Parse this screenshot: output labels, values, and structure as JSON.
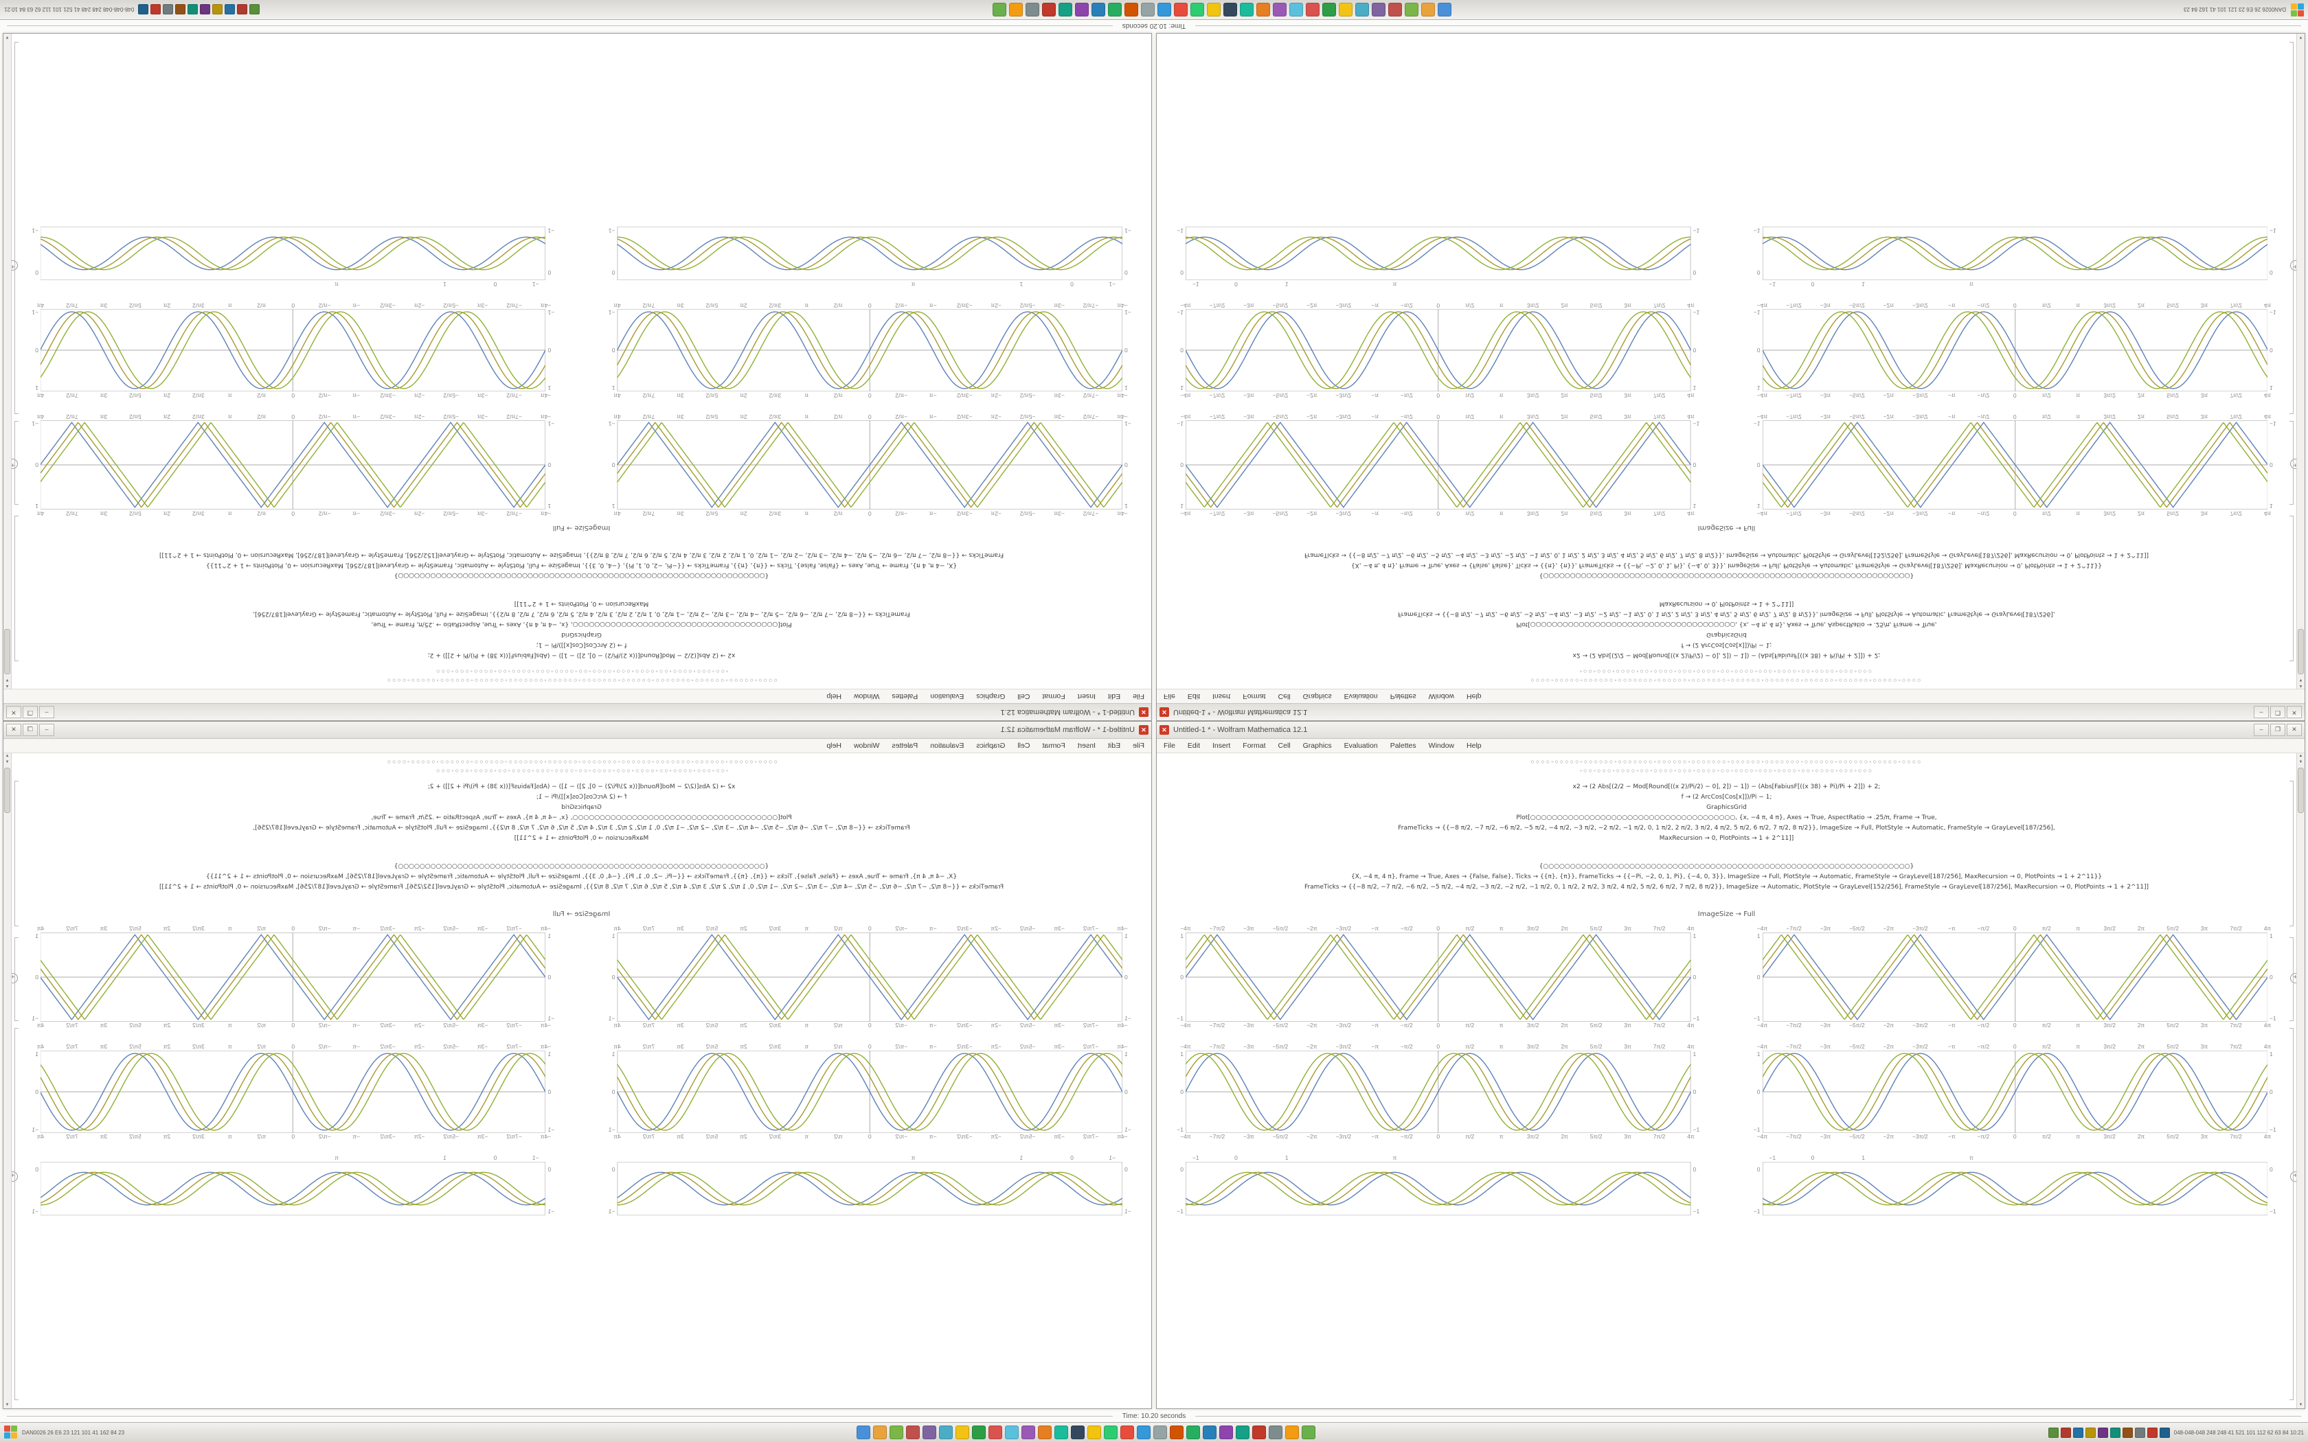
{
  "status_bar": {
    "time_label": "Time: 10.20 seconds"
  },
  "taskbar": {
    "left_status": "DAN0026  26  E6  23  121  101  41  162  84  23",
    "right_status": "048-048-048  248 248 41 521 101 112 62 63 84  10:21",
    "app_icon_colors": [
      "#4a90d9",
      "#e8a33d",
      "#7ab648",
      "#c0504d",
      "#8064a2",
      "#4bacc6",
      "#f2c314",
      "#2d9e46",
      "#d9534f",
      "#5bc0de",
      "#9b59b6",
      "#e67e22",
      "#1abc9c",
      "#34495e",
      "#f1c40f",
      "#2ecc71",
      "#e74c3c",
      "#3498db",
      "#95a5a6",
      "#d35400",
      "#27ae60",
      "#2980b9",
      "#8e44ad",
      "#16a085",
      "#c0392b",
      "#7f8c8d",
      "#f39c12",
      "#6ab04c"
    ],
    "tray_icon_colors": [
      "#5a8f3c",
      "#b03a2e",
      "#2471a3",
      "#b7950b",
      "#6c3483",
      "#148f77",
      "#935116",
      "#707b7c",
      "#c0392b",
      "#1f618d"
    ]
  },
  "window": {
    "title": "Untitled-1 * - Wolfram Mathematica 12.1",
    "controls": {
      "minimize": "–",
      "maximize": "❐",
      "close": "✕"
    },
    "menu_items": [
      "File",
      "Edit",
      "Insert",
      "Format",
      "Cell",
      "Graphics",
      "Evaluation",
      "Palettes",
      "Window",
      "Help"
    ],
    "toolbar_rows": [
      "○○○○◦○○○○○◦○○○○○○◦○○○○○○○◦○○○○○○◦○○○○○○○◦○○○○○○◦○○○○○○○◦○○○○○○◦○○○○○○◦○○○○○◦○○○○",
      "◦○○◦○○○◦○○○○◦○○◦○○○○◦○○○◦○○○○◦○○◦○○○○◦○○○◦○○○○◦○○◦○○○○◦○○○◦○○○"
    ],
    "code_block_a": {
      "lines": [
        "x2 → (2 Abs[(2/2 − Mod[Round[((x 2)/Pi/2) − 0], 2]) − 1]) − (Abs[FabiusF[((x 38) + Pi)/Pi + 2]]) + 2;",
        "f → (2 ArcCos[Cos[x]])/Pi − 1;",
        "GraphicsGrid",
        "Plot[○○○○○○○○○○○○○○○○○○○○○○○○○○○○○○○○○○○○○○, {x, −4 π, 4 π}, Axes → True, AspectRatio → .25/π, Frame → True,",
        "FrameTicks → {{−8 π/2, −7 π/2, −6 π/2, −5 π/2, −4 π/2, −3 π/2, −2 π/2, −1 π/2, 0, 1 π/2, 2 π/2, 3 π/2, 4 π/2, 5 π/2, 6 π/2, 7 π/2, 8 π/2}}, ImageSize → Full, PlotStyle → Automatic, FrameStyle → GrayLevel[187/256],",
        "MaxRecursion → 0, PlotPoints → 1 + 2^11]]"
      ]
    },
    "code_block_b": {
      "lines": [
        "{○○○○○○○○○○○○○○○○○○○○○○○○○○○○○○○○○○○○○○○○○○○○○○○○○○○○○○○○○○○○○○○○○○○○}",
        "{X, −4 π, 4 π}, Frame → True, Axes → {False, False}, Ticks → {{π}, {π}}, FrameTicks → {{−Pi, −2, 0, 1, Pi}, {−4, 0, 3}}, ImageSize → Full, PlotStyle → Automatic, FrameStyle → GrayLevel[187/256], MaxRecursion → 0, PlotPoints → 1 + 2^11}}",
        "FrameTicks → {{−8 π/2, −7 π/2, −6 π/2, −5 π/2, −4 π/2, −3 π/2, −2 π/2, −1 π/2, 0, 1 π/2, 2 π/2, 3 π/2, 4 π/2, 5 π/2, 6 π/2, 7 π/2, 8 π/2}}, ImageSize → Automatic, PlotStyle → GrayLevel[152/256], FrameStyle → GrayLevel[187/256], MaxRecursion → 0, PlotPoints → 1 + 2^11]]"
      ]
    },
    "image_size_label": "ImageSize → Full",
    "insert_plus": "+"
  },
  "chart_data": [
    {
      "id": "plot-row-1",
      "type": "line",
      "wave": "triangle",
      "title": "",
      "xlabel": "",
      "ylabel": "",
      "x_range": [
        -12.566,
        12.566
      ],
      "y_range": [
        -1,
        1
      ],
      "freq": 1,
      "amplitude": 0.97,
      "frame": true,
      "axes": true,
      "even_spacing": true,
      "x_ticks_top": true,
      "x_ticks_bottom": true,
      "x_ticks": [
        {
          "label": "−4π"
        },
        {
          "label": "−7π/2"
        },
        {
          "label": "−3π"
        },
        {
          "label": "−5π/2"
        },
        {
          "label": "−2π"
        },
        {
          "label": "−3π/2"
        },
        {
          "label": "−π"
        },
        {
          "label": "−π/2"
        },
        {
          "label": "0"
        },
        {
          "label": "π/2"
        },
        {
          "label": "π"
        },
        {
          "label": "3π/2"
        },
        {
          "label": "2π"
        },
        {
          "label": "5π/2"
        },
        {
          "label": "3π"
        },
        {
          "label": "7π/2"
        },
        {
          "label": "4π"
        }
      ],
      "y_ticks": [
        {
          "pos": 0.04,
          "label": "1"
        },
        {
          "pos": 0.5,
          "label": "0"
        },
        {
          "pos": 0.96,
          "label": "−1"
        }
      ],
      "series": [
        {
          "name": "curve-1",
          "color": "#5e81b5",
          "phase": 0
        },
        {
          "name": "curve-2",
          "color": "#a59a2f",
          "phase": 0.32
        },
        {
          "name": "curve-3",
          "color": "#8fb032",
          "phase": 0.64
        }
      ]
    },
    {
      "id": "plot-row-2",
      "type": "line",
      "wave": "sine",
      "title": "",
      "xlabel": "",
      "ylabel": "",
      "x_range": [
        -12.566,
        12.566
      ],
      "y_range": [
        -1,
        1
      ],
      "freq": 1,
      "amplitude": 0.95,
      "frame": true,
      "axes": true,
      "even_spacing": true,
      "x_ticks_top": true,
      "x_ticks_bottom": true,
      "x_ticks": [
        {
          "label": "−4π"
        },
        {
          "label": "−7π/2"
        },
        {
          "label": "−3π"
        },
        {
          "label": "−5π/2"
        },
        {
          "label": "−2π"
        },
        {
          "label": "−3π/2"
        },
        {
          "label": "−π"
        },
        {
          "label": "−π/2"
        },
        {
          "label": "0"
        },
        {
          "label": "π/2"
        },
        {
          "label": "π"
        },
        {
          "label": "3π/2"
        },
        {
          "label": "2π"
        },
        {
          "label": "5π/2"
        },
        {
          "label": "3π"
        },
        {
          "label": "7π/2"
        },
        {
          "label": "4π"
        }
      ],
      "y_ticks": [
        {
          "pos": 0.04,
          "label": "1"
        },
        {
          "pos": 0.5,
          "label": "0"
        },
        {
          "pos": 0.96,
          "label": "−1"
        }
      ],
      "series": [
        {
          "name": "curve-1",
          "color": "#5e81b5",
          "phase": 0
        },
        {
          "name": "curve-2",
          "color": "#a59a2f",
          "phase": 0.4
        },
        {
          "name": "curve-3",
          "color": "#8fb032",
          "phase": 0.8
        }
      ]
    },
    {
      "id": "plot-row-3",
      "type": "line",
      "wave": "sine",
      "title": "",
      "xlabel": "",
      "ylabel": "",
      "x_range": [
        -1,
        9
      ],
      "y_range": [
        -1,
        1
      ],
      "freq": 2.51,
      "amplitude": 0.62,
      "frame": true,
      "axes": false,
      "even_spacing": false,
      "x_ticks_top": true,
      "x_ticks_bottom": false,
      "x_ticks": [
        {
          "pos": 0.02,
          "label": "−1"
        },
        {
          "pos": 0.1,
          "label": "0"
        },
        {
          "pos": 0.2,
          "label": "1"
        },
        {
          "pos": 0.414,
          "label": "π"
        }
      ],
      "y_ticks": [
        {
          "pos": 0.14,
          "label": "0"
        },
        {
          "pos": 0.92,
          "label": "−1"
        }
      ],
      "series": [
        {
          "name": "curve-1",
          "color": "#5e81b5",
          "phase": 0
        },
        {
          "name": "curve-2",
          "color": "#a59a2f",
          "phase": 0.5
        },
        {
          "name": "curve-3",
          "color": "#8fb032",
          "phase": 1.0
        }
      ]
    }
  ]
}
